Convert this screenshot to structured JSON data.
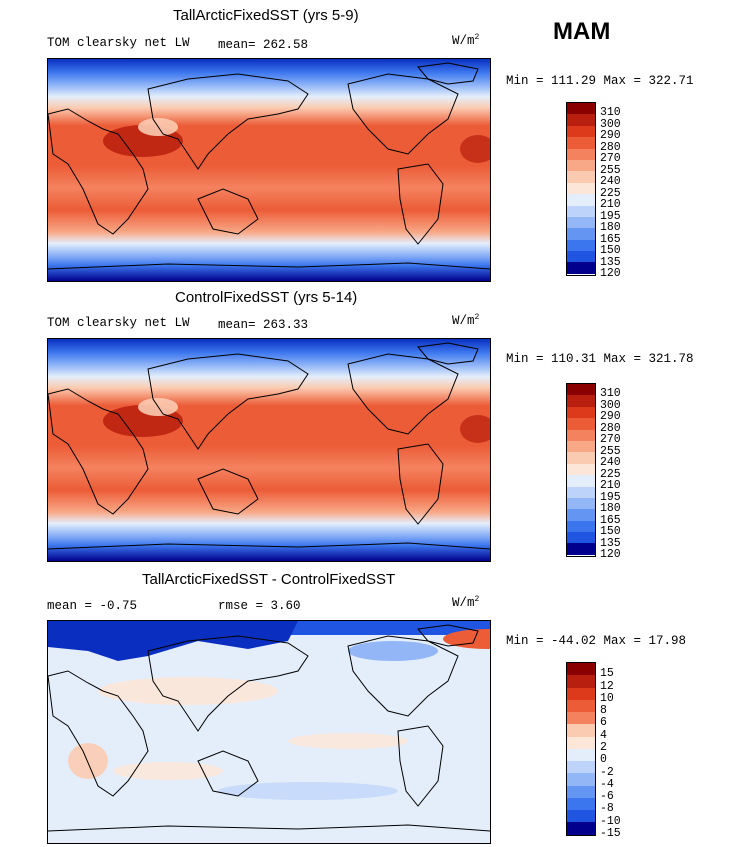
{
  "season_label": "MAM",
  "colors": {
    "abs_scale": [
      "#00008c",
      "#0a2fc0",
      "#1f55e0",
      "#3c76ee",
      "#6595f3",
      "#93b6f7",
      "#bdd3fa",
      "#e4eefb",
      "#fce6d8",
      "#fbcbb1",
      "#f8a886",
      "#f4825f",
      "#ec5c37",
      "#dc3a1a",
      "#b81f0e",
      "#8a0000"
    ],
    "diff_scale": [
      "#00008c",
      "#0a2fc0",
      "#1f55e0",
      "#3c76ee",
      "#6595f3",
      "#93b6f7",
      "#bdd3fa",
      "#e4eefb",
      "#fce6d8",
      "#fbcbb1",
      "#f8a886",
      "#f4825f",
      "#ec5c37",
      "#dc3a1a",
      "#b81f0e",
      "#8a0000"
    ],
    "coast": "#000000"
  },
  "panels": [
    {
      "title": "TallArcticFixedSST (yrs 5-9)",
      "left_label": "TOM clearsky net LW",
      "mid_label": "mean= 262.58",
      "units_base": "W/m",
      "units_exp": "2",
      "minmax": "Min = 111.29 Max = 322.71",
      "colorbar_ticks": [
        "310",
        "300",
        "290",
        "280",
        "270",
        "255",
        "240",
        "225",
        "210",
        "195",
        "180",
        "165",
        "150",
        "135",
        "120"
      ]
    },
    {
      "title": "ControlFixedSST (yrs 5-14)",
      "left_label": "TOM clearsky net LW",
      "mid_label": "mean= 263.33",
      "units_base": "W/m",
      "units_exp": "2",
      "minmax": "Min = 110.31 Max = 321.78",
      "colorbar_ticks": [
        "310",
        "300",
        "290",
        "280",
        "270",
        "255",
        "240",
        "225",
        "210",
        "195",
        "180",
        "165",
        "150",
        "135",
        "120"
      ]
    },
    {
      "title": "TallArcticFixedSST - ControlFixedSST",
      "left_label": "mean =  -0.75",
      "mid_label": "rmse =   3.60",
      "units_base": "W/m",
      "units_exp": "2",
      "minmax": "Min = -44.02 Max =  17.98",
      "colorbar_ticks": [
        "15",
        "12",
        "10",
        "8",
        "6",
        "4",
        "2",
        "0",
        "-2",
        "-4",
        "-6",
        "-8",
        "-10",
        "-15"
      ]
    }
  ],
  "chart_data": [
    {
      "type": "heatmap",
      "title": "TallArcticFixedSST (yrs 5-9)",
      "field": "TOM clearsky net LW",
      "units": "W/m^2",
      "mean": 262.58,
      "min": 111.29,
      "max": 322.71,
      "levels": [
        120,
        135,
        150,
        165,
        180,
        195,
        210,
        225,
        240,
        255,
        270,
        280,
        290,
        300,
        310
      ],
      "lon_range": [
        0,
        360
      ],
      "lat_range": [
        -90,
        90
      ]
    },
    {
      "type": "heatmap",
      "title": "ControlFixedSST (yrs 5-14)",
      "field": "TOM clearsky net LW",
      "units": "W/m^2",
      "mean": 263.33,
      "min": 110.31,
      "max": 321.78,
      "levels": [
        120,
        135,
        150,
        165,
        180,
        195,
        210,
        225,
        240,
        255,
        270,
        280,
        290,
        300,
        310
      ],
      "lon_range": [
        0,
        360
      ],
      "lat_range": [
        -90,
        90
      ]
    },
    {
      "type": "heatmap",
      "title": "TallArcticFixedSST - ControlFixedSST",
      "units": "W/m^2",
      "mean": -0.75,
      "rmse": 3.6,
      "min": -44.02,
      "max": 17.98,
      "levels": [
        -15,
        -10,
        -8,
        -6,
        -4,
        -2,
        0,
        2,
        4,
        6,
        8,
        10,
        12,
        15
      ],
      "lon_range": [
        0,
        360
      ],
      "lat_range": [
        -90,
        90
      ]
    }
  ]
}
